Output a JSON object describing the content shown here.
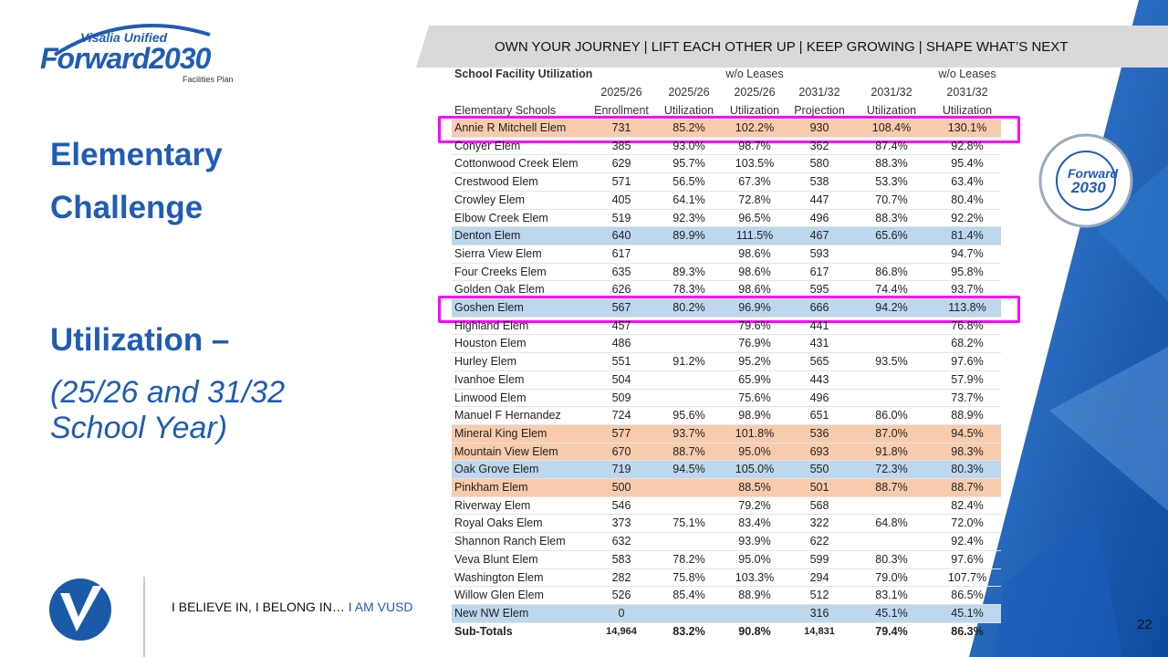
{
  "logo": {
    "top": "Visalia Unified",
    "main": "Forward2030",
    "sub": "Facilities Plan"
  },
  "banner": "OWN YOUR JOURNEY | LIFT EACH OTHER UP | KEEP GROWING | SHAPE WHAT’S NEXT",
  "heading": [
    "Elementary",
    "Challenge"
  ],
  "subheading": {
    "title": "Utilization –",
    "lines": [
      "(25/26 and 31/32",
      "School Year)"
    ]
  },
  "badge": [
    "Forward",
    "2030"
  ],
  "footer": {
    "motto": "I BELIEVE IN, I BELONG IN… ",
    "tag": "I AM VUSD",
    "page": "22"
  },
  "table": {
    "header": [
      [
        "School Facility Utilization",
        null,
        null,
        "w/o Leases",
        null,
        null,
        "w/o Leases"
      ],
      [
        null,
        "2025/26",
        "2025/26",
        "2025/26",
        "2031/32",
        "2031/32",
        "2031/32"
      ],
      [
        "Elementary Schools",
        "Enrollment",
        "Utilization",
        "Utilization",
        "Projection",
        "Utilization",
        "Utilization"
      ]
    ],
    "rows": [
      {
        "cells": [
          "Annie R Mitchell Elem",
          "731",
          "85.2%",
          "102.2%",
          "930",
          "108.4%",
          "130.1%"
        ],
        "highlight": "#f8cbad",
        "boxed": true
      },
      {
        "cells": [
          "Conyer Elem",
          "385",
          "93.0%",
          "98.7%",
          "362",
          "87.4%",
          "92.8%"
        ]
      },
      {
        "cells": [
          "Cottonwood Creek Elem",
          "629",
          "95.7%",
          "103.5%",
          "580",
          "88.3%",
          "95.4%"
        ]
      },
      {
        "cells": [
          "Crestwood Elem",
          "571",
          "56.5%",
          "67.3%",
          "538",
          "53.3%",
          "63.4%"
        ]
      },
      {
        "cells": [
          "Crowley Elem",
          "405",
          "64.1%",
          "72.8%",
          "447",
          "70.7%",
          "80.4%"
        ]
      },
      {
        "cells": [
          "Elbow Creek Elem",
          "519",
          "92.3%",
          "96.5%",
          "496",
          "88.3%",
          "92.2%"
        ]
      },
      {
        "cells": [
          "Denton Elem",
          "640",
          "89.9%",
          "111.5%",
          "467",
          "65.6%",
          "81.4%"
        ],
        "highlight": "#bdd7ee"
      },
      {
        "cells": [
          "Sierra View Elem",
          "617",
          null,
          "98.6%",
          "593",
          null,
          "94.7%"
        ]
      },
      {
        "cells": [
          "Four Creeks Elem",
          "635",
          "89.3%",
          "98.6%",
          "617",
          "86.8%",
          "95.8%"
        ]
      },
      {
        "cells": [
          "Golden Oak Elem",
          "626",
          "78.3%",
          "98.6%",
          "595",
          "74.4%",
          "93.7%"
        ]
      },
      {
        "cells": [
          "Goshen Elem",
          "567",
          "80.2%",
          "96.9%",
          "666",
          "94.2%",
          "113.8%"
        ],
        "highlight": "#bdd7ee",
        "boxed": true
      },
      {
        "cells": [
          "Highland Elem",
          "457",
          null,
          "79.6%",
          "441",
          null,
          "76.8%"
        ]
      },
      {
        "cells": [
          "Houston Elem",
          "486",
          null,
          "76.9%",
          "431",
          null,
          "68.2%"
        ]
      },
      {
        "cells": [
          "Hurley Elem",
          "551",
          "91.2%",
          "95.2%",
          "565",
          "93.5%",
          "97.6%"
        ]
      },
      {
        "cells": [
          "Ivanhoe Elem",
          "504",
          null,
          "65.9%",
          "443",
          null,
          "57.9%"
        ]
      },
      {
        "cells": [
          "Linwood Elem",
          "509",
          null,
          "75.6%",
          "496",
          null,
          "73.7%"
        ]
      },
      {
        "cells": [
          "Manuel F Hernandez",
          "724",
          "95.6%",
          "98.9%",
          "651",
          "86.0%",
          "88.9%"
        ]
      },
      {
        "cells": [
          "Mineral King Elem",
          "577",
          "93.7%",
          "101.8%",
          "536",
          "87.0%",
          "94.5%"
        ],
        "highlight": "#f8cbad"
      },
      {
        "cells": [
          "Mountain View Elem",
          "670",
          "88.7%",
          "95.0%",
          "693",
          "91.8%",
          "98.3%"
        ],
        "highlight": "#f8cbad"
      },
      {
        "cells": [
          "Oak Grove Elem",
          "719",
          "94.5%",
          "105.0%",
          "550",
          "72.3%",
          "80.3%"
        ],
        "highlight": "#bdd7ee"
      },
      {
        "cells": [
          "Pinkham Elem",
          "500",
          null,
          "88.5%",
          "501",
          "88.7%",
          "88.7%"
        ],
        "highlight": "#f8cbad"
      },
      {
        "cells": [
          "Riverway Elem",
          "546",
          null,
          "79.2%",
          "568",
          null,
          "82.4%"
        ]
      },
      {
        "cells": [
          "Royal Oaks Elem",
          "373",
          "75.1%",
          "83.4%",
          "322",
          "64.8%",
          "72.0%"
        ]
      },
      {
        "cells": [
          "Shannon Ranch Elem",
          "632",
          null,
          "93.9%",
          "622",
          null,
          "92.4%"
        ]
      },
      {
        "cells": [
          "Veva Blunt Elem",
          "583",
          "78.2%",
          "95.0%",
          "599",
          "80.3%",
          "97.6%"
        ]
      },
      {
        "cells": [
          "Washington Elem",
          "282",
          "75.8%",
          "103.3%",
          "294",
          "79.0%",
          "107.7%"
        ]
      },
      {
        "cells": [
          "Willow Glen Elem",
          "526",
          "85.4%",
          "88.9%",
          "512",
          "83.1%",
          "86.5%"
        ]
      },
      {
        "cells": [
          "New NW Elem",
          "0",
          null,
          null,
          "316",
          "45.1%",
          "45.1%"
        ],
        "highlight": "#bdd7ee"
      }
    ],
    "totals": [
      "Sub-Totals",
      "14,964",
      "83.2%",
      "90.8%",
      "14,831",
      "79.4%",
      "86.3%"
    ]
  }
}
